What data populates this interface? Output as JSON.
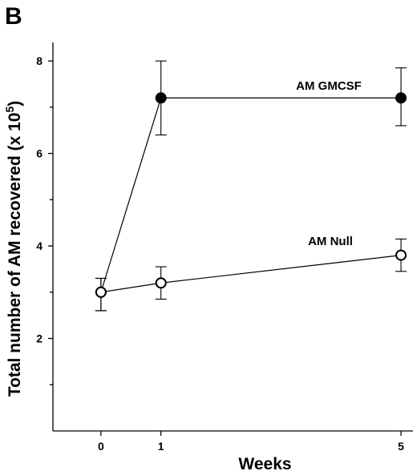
{
  "panel_label": "B",
  "chart_data": {
    "type": "line",
    "title": "",
    "xlabel": "Weeks",
    "ylabel_main": "Total  number of AM recovered (x 10",
    "ylabel_sup": "5",
    "ylabel_end": ")",
    "x_ticks": [
      "0",
      "1",
      "5"
    ],
    "x_tick_values": [
      0,
      1,
      5
    ],
    "y_ticks": [
      "2",
      "4",
      "6",
      "8"
    ],
    "y_tick_values": [
      2,
      4,
      6,
      8
    ],
    "minor_y_ticks": [
      1,
      3,
      5,
      7
    ],
    "xlim": [
      -0.8,
      5.2
    ],
    "ylim": [
      0,
      8.4
    ],
    "grid": false,
    "series": [
      {
        "name": "AM GMCSF",
        "marker": "filled-circle",
        "x": [
          0,
          1,
          5
        ],
        "y": [
          3.0,
          7.2,
          7.2
        ],
        "error_low": [
          2.6,
          6.4,
          6.6
        ],
        "error_high": [
          3.3,
          8.0,
          7.85
        ]
      },
      {
        "name": "AM Null",
        "marker": "open-circle",
        "x": [
          0,
          1,
          5
        ],
        "y": [
          3.0,
          3.2,
          3.8
        ],
        "error_low": [
          2.6,
          2.85,
          3.45
        ],
        "error_high": [
          3.3,
          3.55,
          4.15
        ]
      }
    ]
  }
}
